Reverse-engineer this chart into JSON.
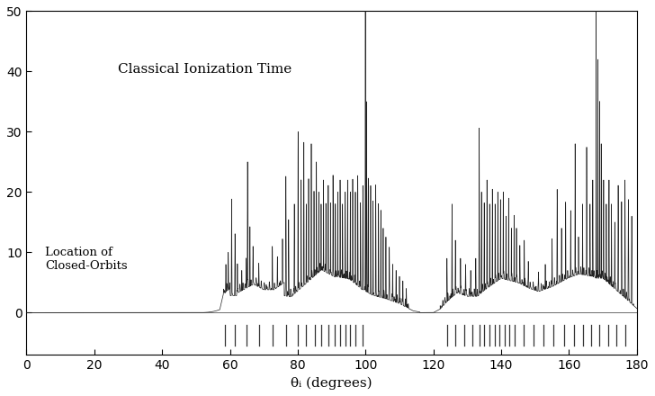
{
  "title": "",
  "xlabel": "θᵢ (degrees)",
  "ylabel": "",
  "text_classical": "Classical Ionization Time",
  "text_closed_orbits": "Location of\nClosed-Orbits",
  "xlim": [
    0,
    180
  ],
  "ylim": [
    -7,
    50
  ],
  "yticks": [
    0,
    10,
    20,
    30,
    40,
    50
  ],
  "xticks": [
    0,
    20,
    40,
    60,
    80,
    100,
    120,
    140,
    160,
    180
  ],
  "line_color": "#222222",
  "background_color": "#ffffff",
  "closed_orbit_locations": [
    58.5,
    61.5,
    65.0,
    68.5,
    72.5,
    76.5,
    80.0,
    82.5,
    85.0,
    87.0,
    89.0,
    91.0,
    92.5,
    94.0,
    95.5,
    97.0,
    99.0,
    124.0,
    126.5,
    129.0,
    131.5,
    133.5,
    135.0,
    136.5,
    138.0,
    139.5,
    141.0,
    142.5,
    144.0,
    146.5,
    149.5,
    152.5,
    155.5,
    158.5,
    161.5,
    164.0,
    166.5,
    169.0,
    171.5,
    174.0,
    176.5
  ],
  "tick_y_bottom": -2.0,
  "tick_y_top": -5.5
}
